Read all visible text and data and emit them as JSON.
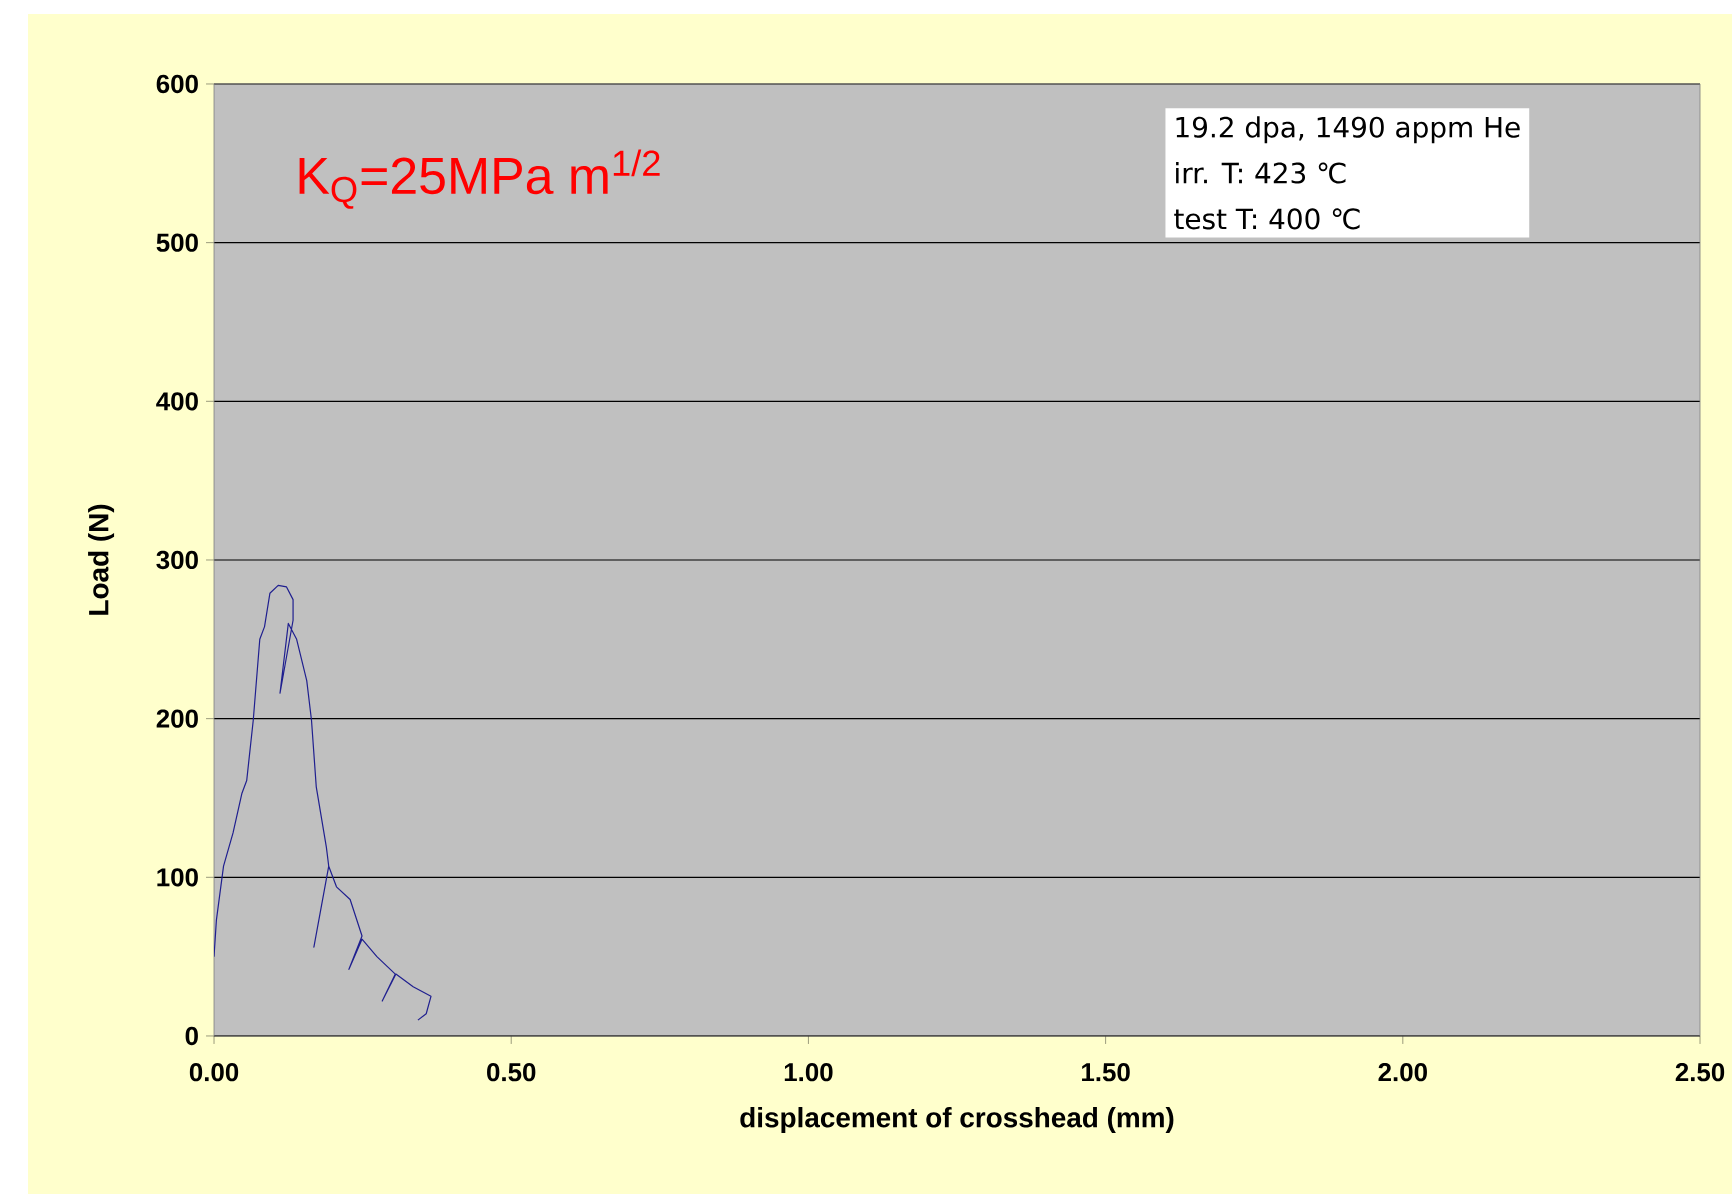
{
  "chart_data": {
    "type": "line",
    "xlabel": "displacement of crosshead (mm)",
    "ylabel": "Load (N)",
    "annotations": [
      "K$_{Q}$=25MPa m$^{1/2}$",
      "19.2 dpa, 1490 appm He",
      "irr. T: 423 ℃",
      "test T: 400 ℃"
    ],
    "xlim": [
      0,
      2.5
    ],
    "ylim": [
      0,
      600
    ],
    "xticks": [
      {
        "value": 0,
        "label": "0.00"
      },
      {
        "value": 0.5,
        "label": "0.50"
      },
      {
        "value": 1,
        "label": "1.00"
      },
      {
        "value": 1.5,
        "label": "1.50"
      },
      {
        "value": 2,
        "label": "2.00"
      },
      {
        "value": 2.5,
        "label": "2.50"
      }
    ],
    "yticks": [
      0,
      100,
      200,
      300,
      400,
      500,
      600
    ],
    "grid": "y",
    "marker": "none",
    "line_style": "solid",
    "series": [
      {
        "color": "#1f1f8f",
        "x": [
          0,
          0.004,
          0.016,
          0.032,
          0.047,
          0.055,
          0.066,
          0.077,
          0.085,
          0.094,
          0.108,
          0.122,
          0.133,
          0.133,
          0.111,
          0.125,
          0.139,
          0.156,
          0.164,
          0.172,
          0.189,
          0.193,
          0.168,
          0.193,
          0.206,
          0.229,
          0.249,
          0.227,
          0.249,
          0.274,
          0.305,
          0.283,
          0.306,
          0.335,
          0.365,
          0.357,
          0.343
        ],
        "values": [
          50,
          73,
          107,
          128,
          153,
          161,
          199,
          250,
          258,
          279,
          284,
          283,
          275,
          262,
          216,
          260,
          250,
          224,
          199,
          157,
          119,
          107,
          56,
          107,
          94,
          86,
          63,
          42,
          61,
          50,
          39,
          22,
          39,
          31,
          25,
          14,
          10
        ]
      }
    ]
  }
}
